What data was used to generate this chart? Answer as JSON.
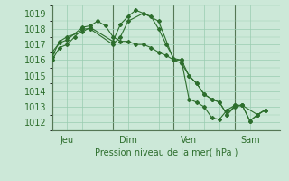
{
  "background_color": "#cce8d8",
  "grid_color": "#99ccb0",
  "line_color": "#2d6e2d",
  "marker_color": "#2d6e2d",
  "xlabel": "Pression niveau de la mer( hPa )",
  "ylim": [
    1011.5,
    1019.5
  ],
  "yticks": [
    1012,
    1013,
    1014,
    1015,
    1016,
    1017,
    1018,
    1019
  ],
  "xlim": [
    0,
    180
  ],
  "day_ticks": [
    12,
    60,
    108,
    156
  ],
  "day_tick_lines": [
    0,
    48,
    96,
    144
  ],
  "day_labels": [
    "Jeu",
    "Dim",
    "Ven",
    "Sam"
  ],
  "series1": {
    "x": [
      0,
      6,
      12,
      18,
      24,
      30,
      48,
      54,
      60,
      72,
      84,
      96,
      102,
      108,
      114,
      120,
      126,
      132,
      138,
      144,
      150,
      162,
      168
    ],
    "y": [
      1016.0,
      1016.8,
      1017.0,
      1017.5,
      1018.0,
      1018.0,
      1017.0,
      1017.5,
      1018.5,
      1019.0,
      1018.5,
      1016.0,
      1016.0,
      1013.5,
      1013.3,
      1013.0,
      1012.3,
      1012.2,
      1012.8,
      1013.1,
      1013.1,
      1012.5,
      1012.8
    ]
  },
  "series2": {
    "x": [
      0,
      6,
      12,
      24,
      30,
      48,
      54,
      60,
      66,
      72,
      78,
      84,
      90,
      96,
      102,
      108,
      114,
      120,
      126,
      132,
      138,
      144,
      150,
      156,
      162,
      168
    ],
    "y": [
      1016.2,
      1017.2,
      1017.5,
      1017.8,
      1018.1,
      1017.2,
      1018.3,
      1018.8,
      1019.2,
      1019.0,
      1018.8,
      1018.0,
      1017.0,
      1016.1,
      1016.0,
      1015.0,
      1014.5,
      1013.8,
      1013.5,
      1013.3,
      1012.5,
      1013.1,
      1013.1,
      1012.1,
      1012.5,
      1012.8
    ]
  },
  "series3": {
    "x": [
      0,
      6,
      12,
      24,
      30,
      36,
      42,
      48,
      54,
      60,
      66,
      72,
      78,
      84,
      90,
      96,
      102,
      108,
      114,
      120,
      126,
      132,
      138,
      144,
      150,
      156,
      162,
      168
    ],
    "y": [
      1016.5,
      1017.1,
      1017.3,
      1018.1,
      1018.2,
      1018.5,
      1018.2,
      1017.5,
      1017.2,
      1017.2,
      1017.0,
      1017.0,
      1016.8,
      1016.5,
      1016.3,
      1016.0,
      1015.8,
      1015.0,
      1014.5,
      1013.8,
      1013.5,
      1013.3,
      1012.5,
      1013.0,
      1013.1,
      1012.1,
      1012.5,
      1012.8
    ]
  }
}
